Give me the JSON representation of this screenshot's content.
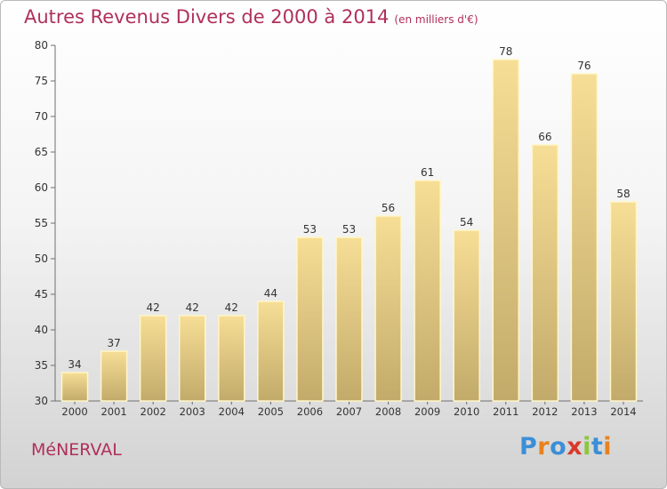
{
  "title": "Autres Revenus Divers de 2000 à 2014",
  "subtitle": "(en milliers d'€)",
  "town": "MéNERVAL",
  "brand": {
    "letters": [
      "P",
      "r",
      "o",
      "x",
      "i",
      "t",
      "i"
    ],
    "colors": [
      "#3b8fd6",
      "#e8821e",
      "#3b8fd6",
      "#d83a2a",
      "#8cc63f",
      "#3b8fd6",
      "#e8821e"
    ]
  },
  "colors": {
    "title": "#b0305a",
    "bar_light": "#f7de96",
    "bar_dark": "#c2aa6a",
    "bar_outline": "#fff6c8"
  },
  "chart_data": {
    "type": "bar",
    "categories": [
      "2000",
      "2001",
      "2002",
      "2003",
      "2004",
      "2005",
      "2006",
      "2007",
      "2008",
      "2009",
      "2010",
      "2011",
      "2012",
      "2013",
      "2014"
    ],
    "values": [
      34,
      37,
      42,
      42,
      42,
      44,
      53,
      53,
      56,
      61,
      54,
      78,
      66,
      76,
      58
    ],
    "title": "Autres Revenus Divers de 2000 à 2014",
    "xlabel": "",
    "ylabel": "",
    "ylim": [
      30,
      80
    ],
    "yticks": [
      30,
      35,
      40,
      45,
      50,
      55,
      60,
      65,
      70,
      75,
      80
    ],
    "grid": false,
    "data_labels": true
  }
}
